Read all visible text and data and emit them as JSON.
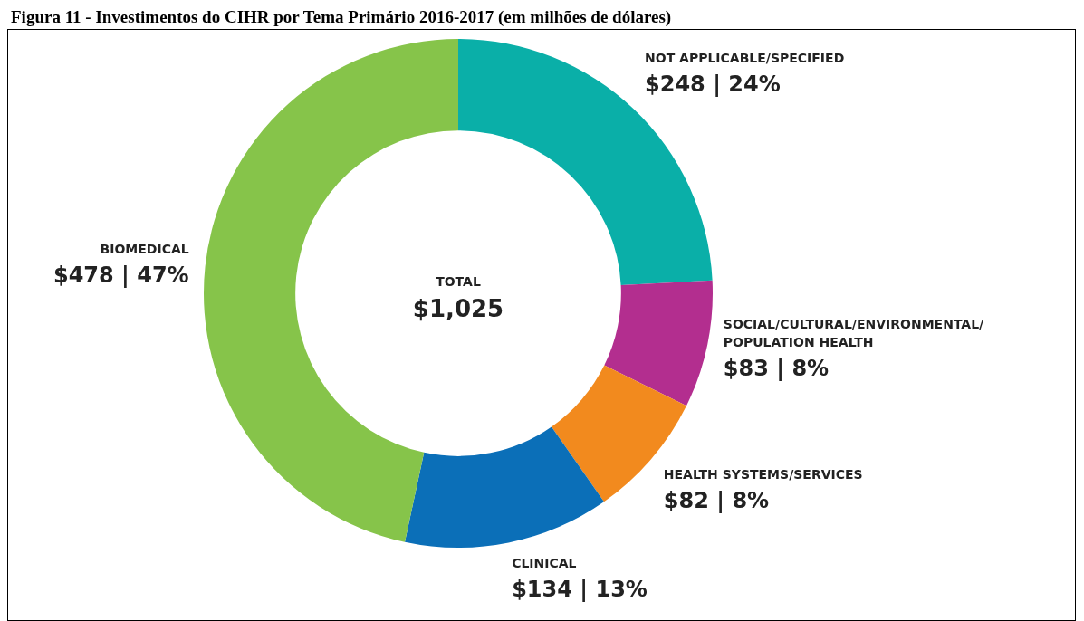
{
  "chart_data": {
    "type": "donut",
    "title": "Figura 11 - Investimentos do CIHR por Tema Primário 2016-2017 (em milhões de dólares)",
    "categories": [
      "NOT APPLICABLE/SPECIFIED",
      "SOCIAL/CULTURAL/ENVIRONMENTAL/POPULATION HEALTH",
      "HEALTH SYSTEMS/SERVICES",
      "CLINICAL",
      "BIOMEDICAL"
    ],
    "values": [
      248,
      83,
      82,
      134,
      478
    ],
    "colors": [
      "#0aafa8",
      "#b32e8f",
      "#f28a1e",
      "#0b6fb8",
      "#86c44a"
    ],
    "value_labels": [
      "$248 | 24%",
      "$83 | 8%",
      "$82 | 8%",
      "$134 | 13%",
      "$478 | 47%"
    ],
    "annotations": [
      "TOTAL",
      "$1,025"
    ],
    "legend": false
  }
}
